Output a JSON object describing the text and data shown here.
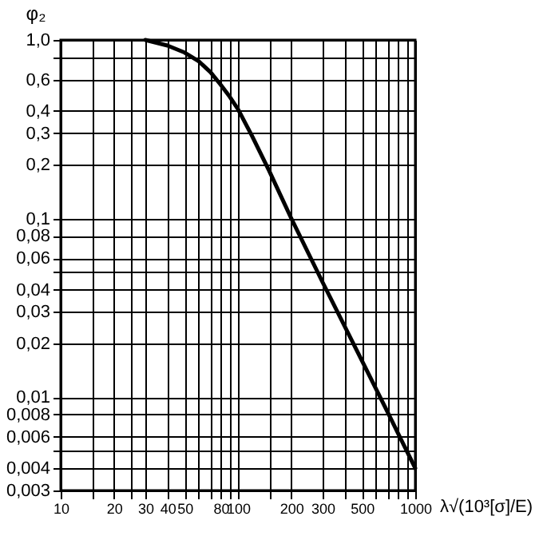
{
  "chart_data": {
    "type": "line",
    "xlabel": "λ√(10³[σ]/E)",
    "ylabel": "φ₂",
    "log": "xy",
    "grid": true,
    "marker": "none",
    "line_style": "solid",
    "x": [
      30,
      40,
      50,
      60,
      70,
      80,
      90,
      100,
      120,
      150,
      200,
      300,
      500,
      700,
      1000
    ],
    "series": [
      {
        "color": "#000000",
        "values": [
          1.0,
          0.93,
          0.85,
          0.76,
          0.66,
          0.56,
          0.48,
          0.41,
          0.29,
          0.185,
          0.1,
          0.044,
          0.016,
          0.0082,
          0.004
        ]
      }
    ],
    "xlim": [
      10,
      1000
    ],
    "xticks": [
      10,
      {
        "value": 15,
        "label": null
      },
      20,
      {
        "value": 25,
        "label": null
      },
      30,
      40,
      50,
      {
        "value": 60,
        "label": null
      },
      {
        "value": 70,
        "label": null
      },
      80,
      {
        "value": 90,
        "label": null
      },
      100,
      {
        "value": 150,
        "label": null
      },
      200,
      300,
      {
        "value": 400,
        "label": null
      },
      500,
      {
        "value": 600,
        "label": null
      },
      {
        "value": 700,
        "label": null
      },
      {
        "value": 800,
        "label": null
      },
      {
        "value": 900,
        "label": null
      },
      1000
    ],
    "ylim": [
      0.003,
      1.0
    ],
    "yticks": [
      {
        "value": 1.0,
        "label": "1,0"
      },
      {
        "value": 0.8,
        "label": null
      },
      {
        "value": 0.6,
        "label": "0,6"
      },
      {
        "value": 0.4,
        "label": "0,4"
      },
      {
        "value": 0.3,
        "label": "0,3"
      },
      {
        "value": 0.2,
        "label": "0,2"
      },
      {
        "value": 0.1,
        "label": "0,1"
      },
      {
        "value": 0.08,
        "label": "0,08"
      },
      {
        "value": 0.06,
        "label": "0,06"
      },
      {
        "value": 0.05,
        "label": null
      },
      {
        "value": 0.04,
        "label": "0,04"
      },
      {
        "value": 0.03,
        "label": "0,03"
      },
      {
        "value": 0.02,
        "label": "0,02"
      },
      {
        "value": 0.01,
        "label": "0,01"
      },
      {
        "value": 0.008,
        "label": "0,008"
      },
      {
        "value": 0.006,
        "label": "0,006"
      },
      {
        "value": 0.005,
        "label": null
      },
      {
        "value": 0.004,
        "label": "0,004"
      },
      {
        "value": 0.003,
        "label": "0,003"
      }
    ]
  }
}
